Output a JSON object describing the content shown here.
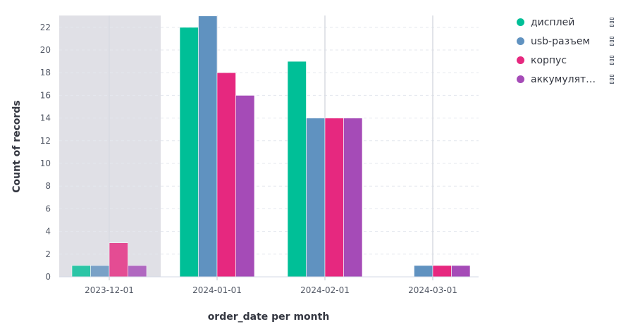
{
  "chart_data": {
    "type": "bar",
    "categories": [
      "2023-12-01",
      "2024-01-01",
      "2024-02-01",
      "2024-03-01"
    ],
    "series": [
      {
        "name": "дисплей",
        "color": "#00bf97",
        "values": [
          1,
          22,
          19,
          0
        ]
      },
      {
        "name": "usb-разъем",
        "color": "#6092c0",
        "values": [
          1,
          23,
          14,
          1
        ]
      },
      {
        "name": "корпус",
        "color": "#e6287f",
        "values": [
          3,
          18,
          14,
          1
        ]
      },
      {
        "name": "аккумулят…",
        "color": "#a54bb7",
        "values": [
          1,
          16,
          14,
          1
        ]
      }
    ],
    "xlabel": "order_date per month",
    "ylabel": "Count of records",
    "yticks": [
      0,
      2,
      4,
      6,
      8,
      10,
      12,
      14,
      16,
      18,
      20,
      22
    ],
    "ylim": [
      0,
      23
    ],
    "grid": true,
    "legend": "right",
    "highlighted_region": "2023-12-01"
  },
  "legend_menu_icon": "vertical-dots-icon"
}
